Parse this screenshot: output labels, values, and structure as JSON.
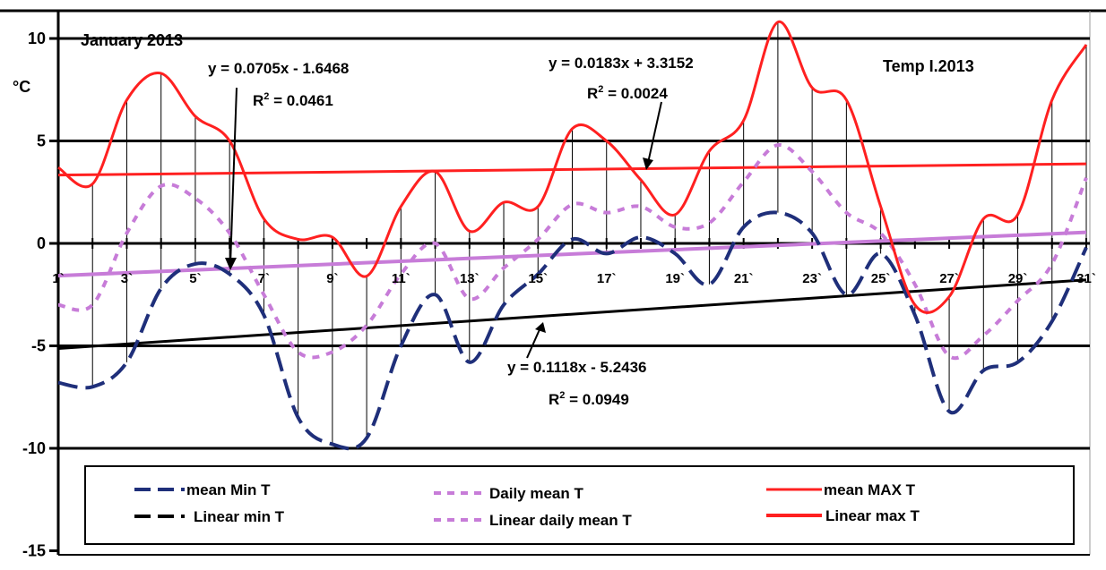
{
  "chart_data": {
    "type": "line",
    "title": "January 2013",
    "subtitle": "Temp I.2013",
    "ylabel": "°C",
    "xlabel": "",
    "ylim": [
      -15,
      12
    ],
    "xlim": [
      1,
      31
    ],
    "grid": true,
    "y_ticks": [
      "10",
      "5",
      "0",
      "-5",
      "-10",
      "-15"
    ],
    "y_tick_values": [
      10,
      5,
      0,
      -5,
      -10,
      -15
    ],
    "x_ticks": [
      "1`",
      "3`",
      "5`",
      "7`",
      "9`",
      "11`",
      "13`",
      "15`",
      "17`",
      "19`",
      "21`",
      "23`",
      "25`",
      "27`",
      "29`",
      "31`"
    ],
    "x_tick_values": [
      1,
      3,
      5,
      7,
      9,
      11,
      13,
      15,
      17,
      19,
      21,
      23,
      25,
      27,
      29,
      31
    ],
    "x": [
      1,
      2,
      3,
      4,
      5,
      6,
      7,
      8,
      9,
      10,
      11,
      12,
      13,
      14,
      15,
      16,
      17,
      18,
      19,
      20,
      21,
      22,
      23,
      24,
      25,
      26,
      27,
      28,
      29,
      30,
      31
    ],
    "series": [
      {
        "name": "mean Min T",
        "style": "dash",
        "color": "#1f2f7a",
        "values": [
          -6.8,
          -7.0,
          -5.8,
          -2.2,
          -1.0,
          -1.5,
          -3.5,
          -8.5,
          -9.8,
          -9.5,
          -5.0,
          -2.5,
          -5.8,
          -3.0,
          -1.5,
          0.2,
          -0.5,
          0.3,
          -0.5,
          -2.0,
          0.8,
          1.5,
          0.5,
          -2.5,
          -0.5,
          -3.5,
          -8.2,
          -6.2,
          -5.8,
          -3.8,
          -0.2
        ]
      },
      {
        "name": "Daily mean T",
        "style": "dot",
        "color": "#c77cd8",
        "values": [
          -3.0,
          -3.0,
          0.5,
          2.8,
          2.2,
          0.5,
          -2.5,
          -5.3,
          -5.3,
          -4.0,
          -1.5,
          0.0,
          -2.7,
          -1.2,
          0.2,
          1.9,
          1.5,
          1.8,
          0.8,
          1.0,
          3.0,
          4.8,
          3.5,
          1.5,
          0.5,
          -2.0,
          -5.5,
          -4.5,
          -2.8,
          -1.0,
          3.2
        ]
      },
      {
        "name": "mean MAX T",
        "style": "solid",
        "color": "#ff2020",
        "values": [
          3.7,
          2.9,
          7.0,
          8.3,
          6.2,
          5.0,
          1.2,
          0.2,
          0.3,
          -1.6,
          1.8,
          3.5,
          0.6,
          2.0,
          1.8,
          5.6,
          5.0,
          3.1,
          1.4,
          4.5,
          6.0,
          10.8,
          7.6,
          7.0,
          1.8,
          -3.0,
          -2.6,
          1.2,
          1.4,
          7.0,
          9.7
        ]
      }
    ],
    "trendlines": [
      {
        "name": "Linear min T",
        "color": "#000000",
        "slope": 0.1118,
        "intercept": -5.2436,
        "equation": "y = 0.1118x - 5.2436",
        "r2_label": "R",
        "r2_sup": "2",
        "r2_value": " = 0.0949"
      },
      {
        "name": "Linear daily mean T",
        "color": "#c77cd8",
        "slope": 0.0705,
        "intercept": -1.6468,
        "equation": "y = 0.0705x - 1.6468",
        "r2_label": "R",
        "r2_sup": "2",
        "r2_value": " = 0.0461"
      },
      {
        "name": "Linear max T",
        "color": "#ff2020",
        "slope": 0.0183,
        "intercept": 3.3152,
        "equation": "y = 0.0183x + 3.3152",
        "r2_label": "R",
        "r2_sup": "2",
        "r2_value": " = 0.0024"
      }
    ],
    "legend": {
      "placement": "bottom",
      "entries": [
        {
          "label": "mean Min T",
          "color": "#1f2f7a",
          "style": "dash"
        },
        {
          "label": "Daily mean T",
          "color": "#c77cd8",
          "style": "dot"
        },
        {
          "label": "mean MAX T",
          "color": "#ff2020",
          "style": "solid"
        },
        {
          "label": "Linear min T",
          "color": "#000000",
          "style": "dash"
        },
        {
          "label": "Linear daily mean T",
          "color": "#c77cd8",
          "style": "dot"
        },
        {
          "label": "Linear max T",
          "color": "#ff2020",
          "style": "solid"
        }
      ]
    }
  }
}
